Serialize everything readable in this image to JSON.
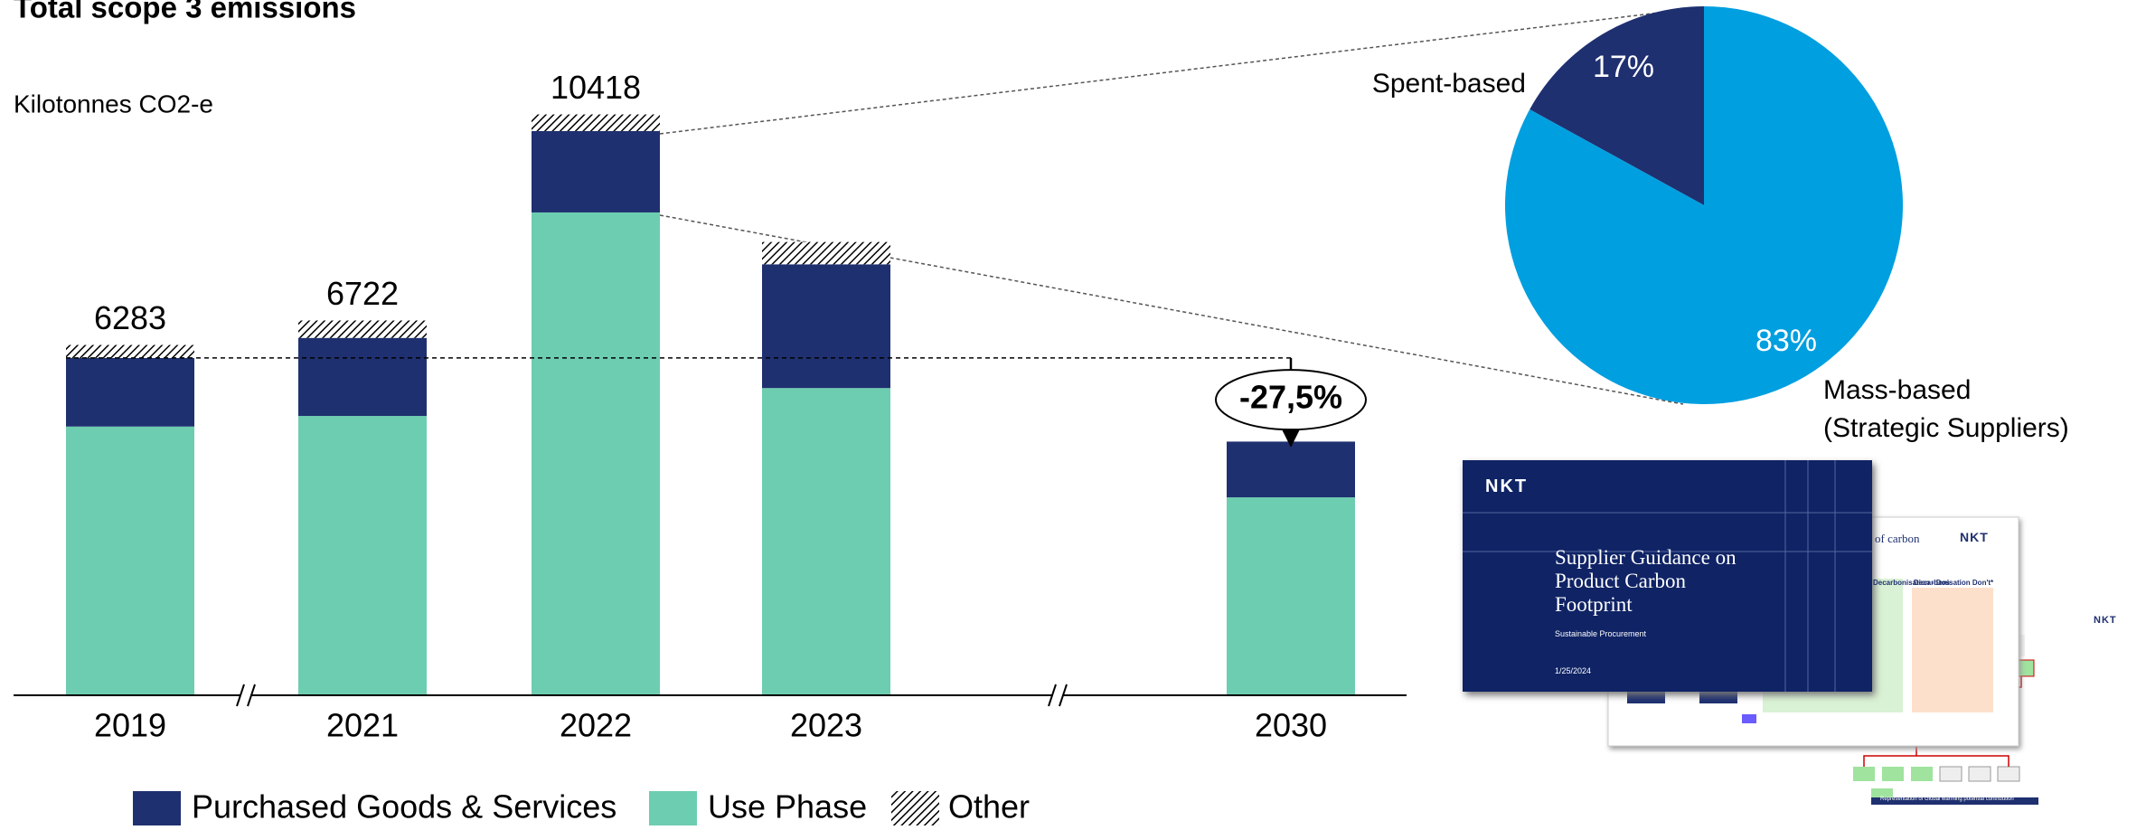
{
  "chart_data": [
    {
      "type": "bar",
      "stacked": true,
      "title": "Total scope 3 emissions",
      "subtitle": "Kilotonnes CO2-e",
      "categories": [
        "2019",
        "2021",
        "2022",
        "2023",
        "2030"
      ],
      "series": [
        {
          "name": "Purchased Goods & Services",
          "color": "#1f3070",
          "values": [
            1230,
            1400,
            1460,
            2220,
            1000
          ]
        },
        {
          "name": "Use Phase",
          "color": "#6dcdb0",
          "values": [
            4820,
            5010,
            8660,
            5510,
            3550
          ]
        },
        {
          "name": "Other",
          "color": "#000000",
          "pattern": "hatch",
          "values": [
            233,
            312,
            298,
            400,
            null
          ]
        }
      ],
      "total_labels": [
        6283,
        6722,
        10418,
        null,
        null
      ],
      "annotation": "-27,5%",
      "ylim": [
        0,
        10800
      ]
    },
    {
      "type": "pie",
      "categories": [
        "Spent-based",
        "Mass-based\n(Strategic Suppliers)"
      ],
      "values": [
        17,
        83
      ],
      "value_labels": [
        "17%",
        "83%"
      ],
      "colors": [
        "#1f3070",
        "#009fe0"
      ]
    }
  ],
  "document_preview": {
    "front": {
      "logo": "NKT",
      "title": "Supplier Guidance on Product Carbon Footprint",
      "subtitle": "Sustainable Procurement",
      "date": "1/25/2024"
    },
    "back": {
      "heading": "of carbon",
      "logo": "NKT",
      "column_1": "Decarbonisation - Dos",
      "column_2": "Decarbonisation Don't*"
    },
    "diagram": {
      "logo": "NKT",
      "caption": "Representation of Global warming potential contribution"
    }
  }
}
